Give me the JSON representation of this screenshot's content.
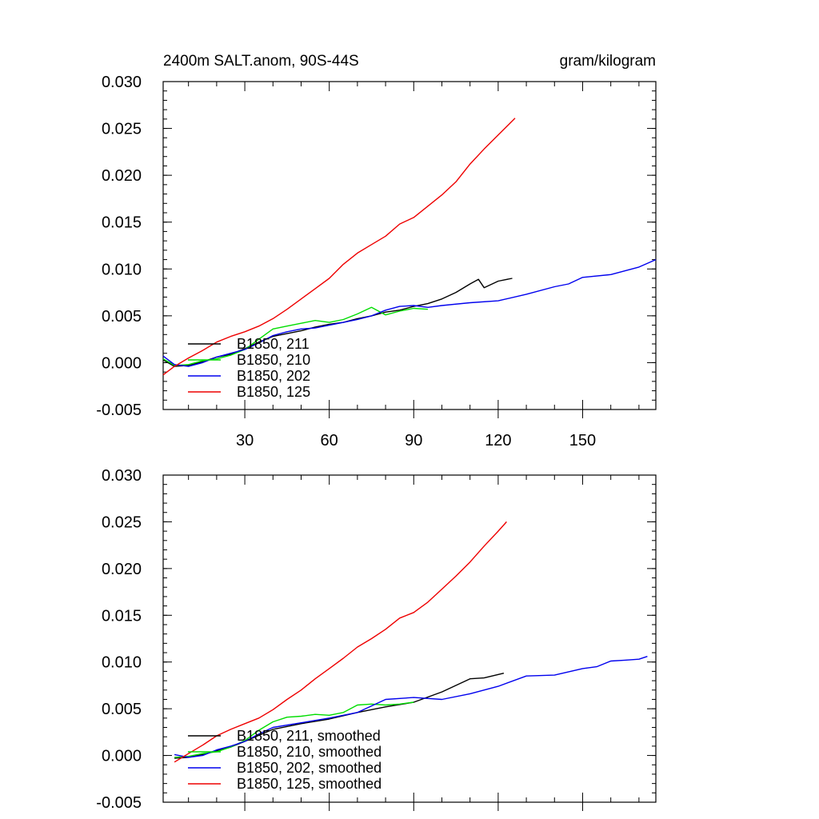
{
  "chart_data": [
    {
      "type": "line",
      "title": "2400m SALT.anom, 90S-44S",
      "units": "gram/kilogram",
      "xlim": [
        1,
        176
      ],
      "ylim": [
        -0.005,
        0.03
      ],
      "x_ticks": [
        30,
        60,
        90,
        120,
        150
      ],
      "x_tick_labels": [
        "30",
        "60",
        "90",
        "120",
        "150"
      ],
      "y_ticks": [
        -0.005,
        0,
        0.005,
        0.01,
        0.015,
        0.02,
        0.025,
        0.03
      ],
      "y_tick_labels": [
        "-0.005",
        "0.000",
        "0.005",
        "0.010",
        "0.015",
        "0.020",
        "0.025",
        "0.030"
      ],
      "legend_position": "lower-left",
      "series": [
        {
          "name": "B1850, 211",
          "color": "#000000",
          "x": [
            1,
            5,
            10,
            15,
            20,
            25,
            30,
            35,
            40,
            45,
            50,
            55,
            60,
            65,
            70,
            75,
            80,
            85,
            90,
            95,
            100,
            105,
            110,
            113,
            115,
            120,
            125
          ],
          "y": [
            0.0003,
            -0.0004,
            -0.0003,
            0.0001,
            0.0006,
            0.0009,
            0.0015,
            0.0022,
            0.0028,
            0.0031,
            0.0034,
            0.0038,
            0.0041,
            0.0043,
            0.0047,
            0.005,
            0.0054,
            0.0056,
            0.006,
            0.0063,
            0.0068,
            0.0075,
            0.0084,
            0.0089,
            0.008,
            0.0087,
            0.009
          ]
        },
        {
          "name": "B1850, 210",
          "color": "#00dd00",
          "x": [
            1,
            5,
            10,
            15,
            20,
            25,
            30,
            35,
            40,
            45,
            50,
            55,
            60,
            65,
            70,
            75,
            80,
            85,
            90,
            95
          ],
          "y": [
            0.0004,
            -0.0003,
            -0.0002,
            0.0002,
            0.0004,
            0.0008,
            0.0014,
            0.0025,
            0.0036,
            0.0039,
            0.0042,
            0.0045,
            0.0043,
            0.0046,
            0.0052,
            0.0059,
            0.0051,
            0.0055,
            0.0058,
            0.0057
          ]
        },
        {
          "name": "B1850, 202",
          "color": "#0000ee",
          "x": [
            1,
            5,
            10,
            15,
            20,
            25,
            30,
            35,
            40,
            45,
            50,
            55,
            60,
            65,
            70,
            75,
            80,
            85,
            90,
            95,
            100,
            110,
            120,
            130,
            140,
            145,
            150,
            160,
            170,
            176
          ],
          "y": [
            0.0007,
            -0.0002,
            -0.0004,
            0.0,
            0.0006,
            0.001,
            0.0014,
            0.0021,
            0.0029,
            0.0033,
            0.0036,
            0.0037,
            0.004,
            0.0043,
            0.0046,
            0.005,
            0.0056,
            0.006,
            0.0061,
            0.0059,
            0.0061,
            0.0064,
            0.0066,
            0.0073,
            0.0081,
            0.0084,
            0.0091,
            0.0094,
            0.0102,
            0.011
          ]
        },
        {
          "name": "B1850, 125",
          "color": "#ee0000",
          "x": [
            1,
            5,
            10,
            15,
            20,
            25,
            30,
            35,
            40,
            45,
            50,
            55,
            60,
            65,
            70,
            75,
            80,
            85,
            90,
            95,
            100,
            105,
            110,
            115,
            120,
            126
          ],
          "y": [
            -0.0013,
            -0.0004,
            0.0005,
            0.0013,
            0.0022,
            0.0028,
            0.0033,
            0.0039,
            0.0047,
            0.0057,
            0.0068,
            0.0079,
            0.009,
            0.0105,
            0.0117,
            0.0126,
            0.0135,
            0.0148,
            0.0155,
            0.0167,
            0.0179,
            0.0193,
            0.0212,
            0.0228,
            0.0243,
            0.0261
          ]
        }
      ]
    },
    {
      "type": "line",
      "xlim": [
        1,
        176
      ],
      "ylim": [
        -0.005,
        0.03
      ],
      "x_ticks": [
        30,
        60,
        90,
        120,
        150
      ],
      "y_ticks": [
        -0.005,
        0,
        0.005,
        0.01,
        0.015,
        0.02,
        0.025,
        0.03
      ],
      "y_tick_labels": [
        "-0.005",
        "0.000",
        "0.005",
        "0.010",
        "0.015",
        "0.020",
        "0.025",
        "0.030"
      ],
      "legend_position": "lower-left",
      "series": [
        {
          "name": "B1850, 211, smoothed",
          "color": "#000000",
          "x": [
            5,
            10,
            15,
            20,
            25,
            30,
            40,
            50,
            60,
            70,
            80,
            90,
            100,
            110,
            115,
            122
          ],
          "y": [
            -0.0003,
            -0.0002,
            0.0001,
            0.0005,
            0.0009,
            0.0015,
            0.0028,
            0.0034,
            0.0039,
            0.0046,
            0.0052,
            0.0057,
            0.0068,
            0.0082,
            0.0083,
            0.0088
          ]
        },
        {
          "name": "B1850, 210, smoothed",
          "color": "#00dd00",
          "x": [
            5,
            10,
            15,
            20,
            25,
            30,
            35,
            40,
            45,
            50,
            55,
            60,
            65,
            70,
            75,
            80,
            85,
            90
          ],
          "y": [
            -0.0002,
            -0.0001,
            0.0002,
            0.0004,
            0.0009,
            0.0016,
            0.0027,
            0.0036,
            0.0041,
            0.0042,
            0.0044,
            0.0043,
            0.0046,
            0.0054,
            0.0055,
            0.0054,
            0.0055,
            0.0057
          ]
        },
        {
          "name": "B1850, 202, smoothed",
          "color": "#0000ee",
          "x": [
            5,
            10,
            15,
            20,
            25,
            30,
            35,
            40,
            50,
            60,
            70,
            80,
            90,
            100,
            110,
            120,
            130,
            140,
            150,
            155,
            160,
            165,
            170,
            173
          ],
          "y": [
            0.0001,
            -0.0002,
            0.0,
            0.0006,
            0.001,
            0.0015,
            0.0023,
            0.003,
            0.0035,
            0.004,
            0.0046,
            0.006,
            0.0062,
            0.006,
            0.0066,
            0.0074,
            0.0085,
            0.0086,
            0.0093,
            0.0095,
            0.0101,
            0.0102,
            0.0103,
            0.0106
          ]
        },
        {
          "name": "B1850, 125, smoothed",
          "color": "#ee0000",
          "x": [
            5,
            10,
            15,
            20,
            25,
            30,
            35,
            40,
            45,
            50,
            55,
            60,
            65,
            70,
            75,
            80,
            85,
            90,
            95,
            100,
            105,
            110,
            115,
            120,
            123
          ],
          "y": [
            -0.0007,
            0.0002,
            0.0011,
            0.0021,
            0.0028,
            0.0034,
            0.004,
            0.0049,
            0.006,
            0.007,
            0.0082,
            0.0093,
            0.0104,
            0.0116,
            0.0125,
            0.0135,
            0.0147,
            0.0153,
            0.0164,
            0.0178,
            0.0192,
            0.0207,
            0.0224,
            0.024,
            0.025
          ]
        }
      ]
    }
  ]
}
